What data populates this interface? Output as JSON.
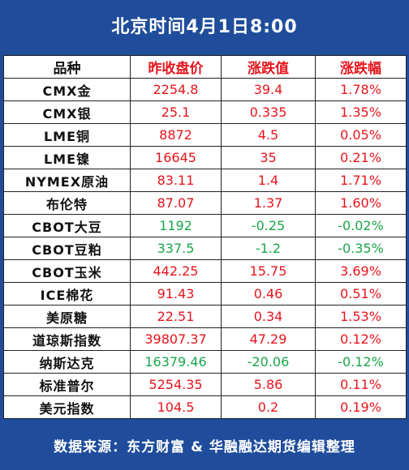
{
  "header": {
    "title": "北京时间4月1日8:00"
  },
  "table": {
    "columns": [
      {
        "text": "品种",
        "color": "#111111"
      },
      {
        "text": "昨收盘价",
        "color": "#e8141c"
      },
      {
        "text": "涨跌值",
        "color": "#e8141c"
      },
      {
        "text": "涨跌幅",
        "color": "#e8141c"
      }
    ],
    "rows": [
      {
        "cells": [
          "CMX金",
          "2254.8",
          "39.4",
          "1.78%"
        ],
        "color": "#e8141c"
      },
      {
        "cells": [
          "CMX银",
          "25.1",
          "0.335",
          "1.35%"
        ],
        "color": "#e8141c"
      },
      {
        "cells": [
          "LME铜",
          "8872",
          "4.5",
          "0.05%"
        ],
        "color": "#e8141c"
      },
      {
        "cells": [
          "LME镍",
          "16645",
          "35",
          "0.21%"
        ],
        "color": "#e8141c"
      },
      {
        "cells": [
          "NYMEX原油",
          "83.11",
          "1.4",
          "1.71%"
        ],
        "color": "#e8141c"
      },
      {
        "cells": [
          "布伦特",
          "87.07",
          "1.37",
          "1.60%"
        ],
        "color": "#e8141c"
      },
      {
        "cells": [
          "CBOT大豆",
          "1192",
          "-0.25",
          "-0.02%"
        ],
        "color": "#1aa64a"
      },
      {
        "cells": [
          "CBOT豆粕",
          "337.5",
          "-1.2",
          "-0.35%"
        ],
        "color": "#1aa64a"
      },
      {
        "cells": [
          "CBOT玉米",
          "442.25",
          "15.75",
          "3.69%"
        ],
        "color": "#e8141c"
      },
      {
        "cells": [
          "ICE棉花",
          "91.43",
          "0.46",
          "0.51%"
        ],
        "color": "#e8141c"
      },
      {
        "cells": [
          "美原糖",
          "22.51",
          "0.34",
          "1.53%"
        ],
        "color": "#e8141c"
      },
      {
        "cells": [
          "道琼斯指数",
          "39807.37",
          "47.29",
          "0.12%"
        ],
        "color": "#e8141c"
      },
      {
        "cells": [
          "纳斯达克",
          "16379.46",
          "-20.06",
          "-0.12%"
        ],
        "color": "#1aa64a"
      },
      {
        "cells": [
          "标准普尔",
          "5254.35",
          "5.86",
          "0.11%"
        ],
        "color": "#e8141c"
      },
      {
        "cells": [
          "美元指数",
          "104.5",
          "0.2",
          "0.19%"
        ],
        "color": "#e8141c"
      }
    ]
  },
  "footer": {
    "text": "数据来源：东方财富 & 华融融达期货编辑整理"
  }
}
